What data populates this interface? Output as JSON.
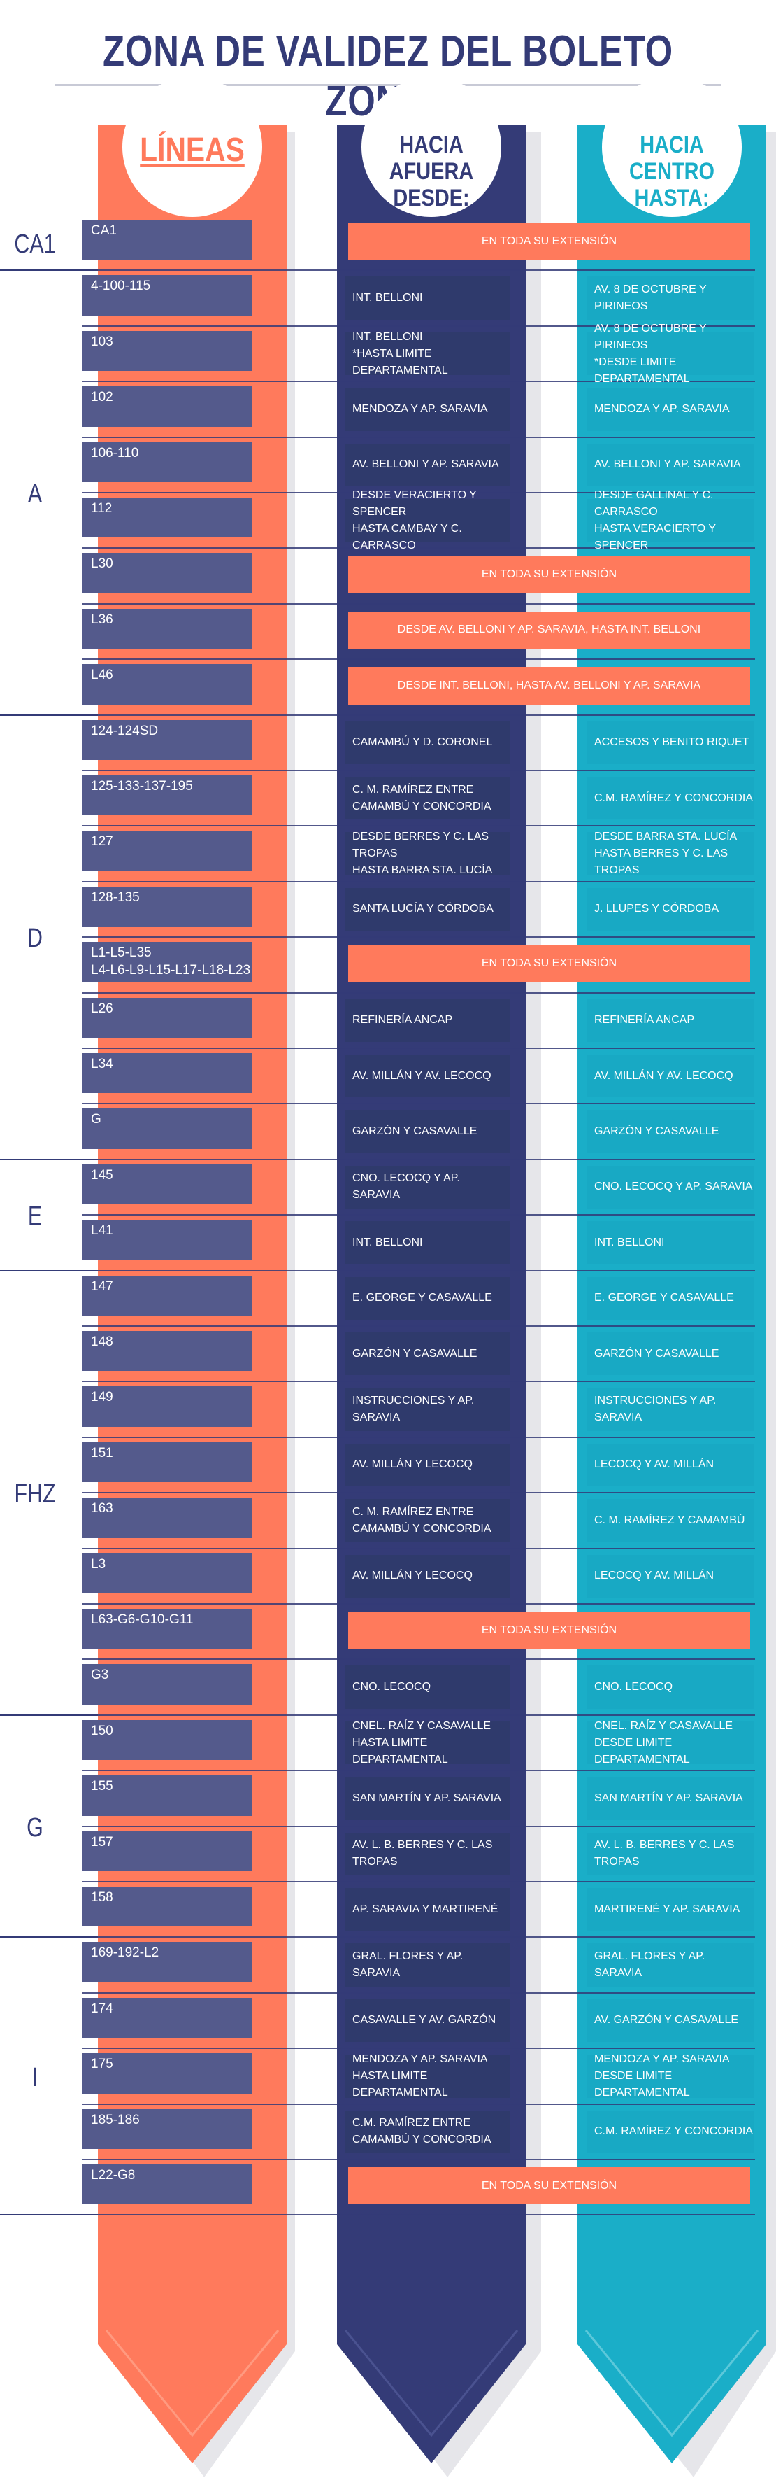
{
  "title": "ZONA DE VALIDEZ DEL BOLETO ZONAL",
  "headers": {
    "lines": "LÍNEAS",
    "outward_line1": "HACIA AFUERA",
    "outward_line2": "DESDE:",
    "inward_line1": "HACIA CENTRO",
    "inward_line2": "HASTA:"
  },
  "colors": {
    "title": "#343b77",
    "lines_column": "#ff7a5c",
    "outward_column": "#343b77",
    "inward_column": "#1aaec8",
    "line_box": "#545a8c",
    "span_cell": "#ff7a5c"
  },
  "zones": [
    {
      "name": "CA1",
      "rows": [
        {
          "lines": "CA1",
          "span": "EN TODA SU EXTENSIÓN"
        }
      ]
    },
    {
      "name": "A",
      "rows": [
        {
          "lines": "4-100-115",
          "outward": "INT. BELLONI",
          "inward": "AV. 8 DE OCTUBRE Y PIRINEOS"
        },
        {
          "lines": "103",
          "outward": "INT. BELLONI\n*HASTA LIMITE DEPARTAMENTAL",
          "inward": "AV. 8 DE OCTUBRE Y PIRINEOS\n*DESDE LIMITE DEPARTAMENTAL"
        },
        {
          "lines": "102",
          "outward": "MENDOZA Y AP. SARAVIA",
          "inward": "MENDOZA Y AP. SARAVIA"
        },
        {
          "lines": "106-110",
          "outward": "AV. BELLONI Y AP. SARAVIA",
          "inward": "AV. BELLONI Y AP. SARAVIA"
        },
        {
          "lines": "112",
          "outward": "DESDE VERACIERTO Y SPENCER\nHASTA CAMBAY Y C. CARRASCO",
          "inward": "DESDE GALLINAL Y C. CARRASCO\nHASTA VERACIERTO Y SPENCER"
        },
        {
          "lines": "L30",
          "span": "EN TODA SU EXTENSIÓN"
        },
        {
          "lines": "L36",
          "span": "DESDE AV. BELLONI Y AP. SARAVIA, HASTA INT. BELLONI"
        },
        {
          "lines": "L46",
          "span": "DESDE INT. BELLONI, HASTA AV. BELLONI Y AP. SARAVIA"
        }
      ]
    },
    {
      "name": "D",
      "rows": [
        {
          "lines": "124-124SD",
          "outward": "CAMAMBÚ Y D. CORONEL",
          "inward": "ACCESOS Y BENITO RIQUET"
        },
        {
          "lines": "125-133-137-195",
          "outward": "C. M. RAMÍREZ ENTRE\nCAMAMBÚ Y CONCORDIA",
          "inward": "C.M. RAMÍREZ Y CONCORDIA"
        },
        {
          "lines": "127",
          "outward": "DESDE BERRES Y C. LAS TROPAS\nHASTA BARRA STA. LUCÍA",
          "inward": "DESDE BARRA STA. LUCÍA\nHASTA BERRES Y C. LAS TROPAS"
        },
        {
          "lines": "128-135",
          "outward": "SANTA LUCÍA Y CÓRDOBA",
          "inward": "J. LLUPES Y CÓRDOBA"
        },
        {
          "lines": "L1-L5-L35\nL4-L6-L9-L15-L17-L18-L23",
          "span": "EN TODA SU EXTENSIÓN"
        },
        {
          "lines": "L26",
          "outward": "REFINERÍA ANCAP",
          "inward": "REFINERÍA ANCAP"
        },
        {
          "lines": "L34",
          "outward": "AV. MILLÁN Y AV. LECOCQ",
          "inward": "AV. MILLÁN Y AV. LECOCQ"
        },
        {
          "lines": "G",
          "outward": "GARZÓN Y CASAVALLE",
          "inward": "GARZÓN Y CASAVALLE"
        }
      ]
    },
    {
      "name": "E",
      "rows": [
        {
          "lines": "145",
          "outward": "CNO. LECOCQ Y AP. SARAVIA",
          "inward": "CNO. LECOCQ Y AP. SARAVIA"
        },
        {
          "lines": "L41",
          "outward": "INT. BELLONI",
          "inward": "INT. BELLONI"
        }
      ]
    },
    {
      "name": "FHZ",
      "rows": [
        {
          "lines": "147",
          "outward": "E. GEORGE Y CASAVALLE",
          "inward": "E. GEORGE Y CASAVALLE"
        },
        {
          "lines": "148",
          "outward": "GARZÓN Y CASAVALLE",
          "inward": "GARZÓN Y CASAVALLE"
        },
        {
          "lines": "149",
          "outward": "INSTRUCCIONES Y AP. SARAVIA",
          "inward": "INSTRUCCIONES Y AP. SARAVIA"
        },
        {
          "lines": "151",
          "outward": "AV. MILLÁN Y LECOCQ",
          "inward": "LECOCQ Y AV. MILLÁN"
        },
        {
          "lines": "163",
          "outward": "C. M. RAMÍREZ ENTRE\nCAMAMBÚ Y CONCORDIA",
          "inward": "C. M. RAMÍREZ Y CAMAMBÚ"
        },
        {
          "lines": "L3",
          "outward": "AV. MILLÁN Y LECOCQ",
          "inward": "LECOCQ Y AV. MILLÁN"
        },
        {
          "lines": "L63-G6-G10-G11",
          "span": "EN TODA SU EXTENSIÓN"
        },
        {
          "lines": "G3",
          "outward": "CNO. LECOCQ",
          "inward": "CNO. LECOCQ"
        }
      ]
    },
    {
      "name": "G",
      "rows": [
        {
          "lines": "150",
          "outward": "CNEL. RAÍZ Y CASAVALLE\nHASTA LIMITE DEPARTAMENTAL",
          "inward": "CNEL. RAÍZ Y CASAVALLE\nDESDE LIMITE DEPARTAMENTAL"
        },
        {
          "lines": "155",
          "outward": "SAN MARTÍN Y AP. SARAVIA",
          "inward": "SAN MARTÍN Y AP. SARAVIA"
        },
        {
          "lines": "157",
          "outward": "AV. L. B. BERRES Y C. LAS TROPAS",
          "inward": "AV. L. B. BERRES Y C. LAS TROPAS"
        },
        {
          "lines": "158",
          "outward": "AP. SARAVIA Y MARTIRENÉ",
          "inward": "MARTIRENÉ Y AP. SARAVIA"
        }
      ]
    },
    {
      "name": "I",
      "rows": [
        {
          "lines": "169-192-L2",
          "outward": "GRAL. FLORES Y AP. SARAVIA",
          "inward": "GRAL. FLORES Y AP. SARAVIA"
        },
        {
          "lines": "174",
          "outward": "CASAVALLE Y AV. GARZÓN",
          "inward": "AV. GARZÓN Y CASAVALLE"
        },
        {
          "lines": "175",
          "outward": "MENDOZA Y AP. SARAVIA\nHASTA LIMITE DEPARTAMENTAL",
          "inward": "MENDOZA Y AP. SARAVIA\nDESDE LIMITE DEPARTAMENTAL"
        },
        {
          "lines": "185-186",
          "outward": "C.M. RAMÍREZ ENTRE\nCAMAMBÚ Y CONCORDIA",
          "inward": "C.M. RAMÍREZ Y CONCORDIA"
        },
        {
          "lines": "L22-G8",
          "span": "EN TODA SU EXTENSIÓN"
        }
      ]
    }
  ]
}
